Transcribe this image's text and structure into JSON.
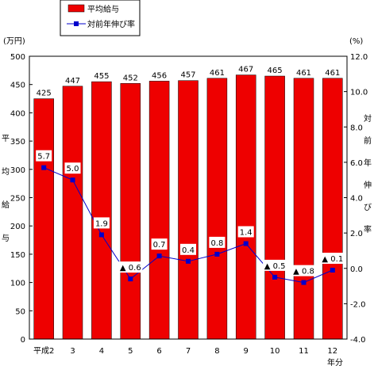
{
  "chart_data": {
    "type": "bar",
    "categories": [
      "平成2",
      "3",
      "4",
      "5",
      "6",
      "7",
      "8",
      "9",
      "10",
      "11",
      "12"
    ],
    "x_suffix": "年分",
    "series": [
      {
        "name": "平均給与",
        "kind": "bar",
        "axis": "left",
        "color": "#ee0000",
        "values": [
          425,
          447,
          455,
          452,
          456,
          457,
          461,
          467,
          465,
          461,
          461
        ]
      },
      {
        "name": "対前年伸び率",
        "kind": "line",
        "axis": "right",
        "color": "#0000cc",
        "values": [
          5.7,
          5.0,
          1.9,
          -0.6,
          0.7,
          0.4,
          0.8,
          1.4,
          -0.5,
          -0.8,
          -0.1
        ],
        "labels": [
          "5.7",
          "5.0",
          "1.9",
          "▲ 0.6",
          "0.7",
          "0.4",
          "0.8",
          "1.4",
          "▲ 0.5",
          "▲ 0.8",
          "▲ 0.1"
        ]
      }
    ],
    "left_axis": {
      "unit": "(万円)",
      "label": "平均給与",
      "ticks": [
        "0",
        "50",
        "100",
        "150",
        "200",
        "250",
        "300",
        "350",
        "400",
        "450",
        "500"
      ],
      "ylim": [
        0,
        500
      ]
    },
    "right_axis": {
      "unit": "(%)",
      "label": "対前年伸び率",
      "ticks": [
        "-4.0",
        "-2.0",
        "0.0",
        "2.0",
        "4.0",
        "6.0",
        "8.0",
        "10.0",
        "12.0"
      ],
      "ylim": [
        -4,
        12
      ]
    },
    "legend": {
      "position": "top-left"
    },
    "grid": false
  }
}
